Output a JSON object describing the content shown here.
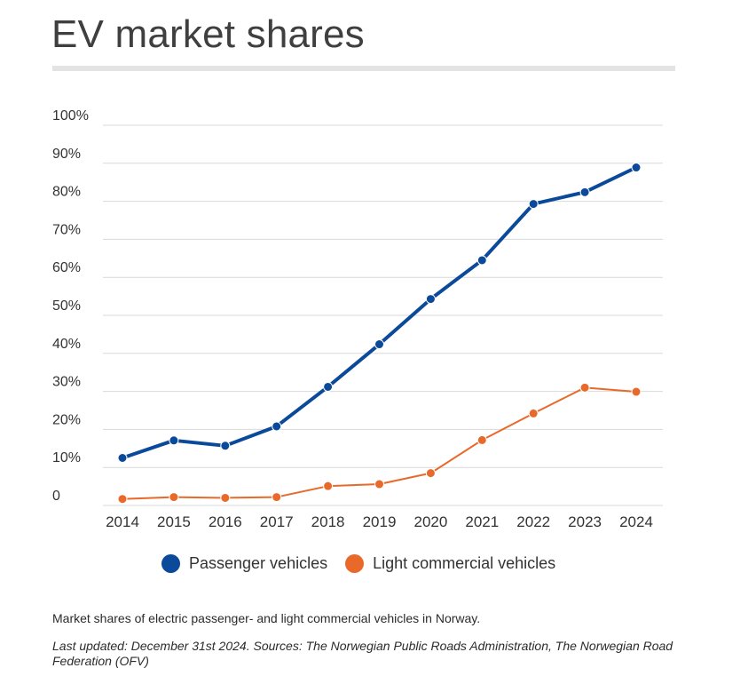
{
  "title": "EV market shares",
  "colors": {
    "passenger": "#0b4a9a",
    "light_commercial": "#e8692a",
    "grid": "#d9d9d9",
    "title_rule": "#e3e3e3"
  },
  "chart_data": {
    "type": "line",
    "x": [
      "2014",
      "2015",
      "2016",
      "2017",
      "2018",
      "2019",
      "2020",
      "2021",
      "2022",
      "2023",
      "2024"
    ],
    "y_ticks": [
      "0",
      "10%",
      "20%",
      "30%",
      "40%",
      "50%",
      "60%",
      "70%",
      "80%",
      "90%",
      "100%"
    ],
    "ylim": [
      0,
      100
    ],
    "grid": true,
    "legend_position": "bottom",
    "series": [
      {
        "name": "Passenger vehicles",
        "color": "#0b4a9a",
        "values": [
          12.5,
          17.1,
          15.7,
          20.8,
          31.2,
          42.4,
          54.3,
          64.5,
          79.3,
          82.4,
          88.9
        ]
      },
      {
        "name": "Light commercial vehicles",
        "color": "#e8692a",
        "values": [
          1.7,
          2.2,
          2.0,
          2.2,
          5.1,
          5.6,
          8.5,
          17.2,
          24.2,
          31.0,
          29.9
        ]
      }
    ]
  },
  "caption": "Market shares of electric passenger- and light commercial vehicles in Norway.",
  "source": "Last updated: December 31st 2024. Sources: The Norwegian Public Roads Administration, The Norwegian Road Federation (OFV)"
}
